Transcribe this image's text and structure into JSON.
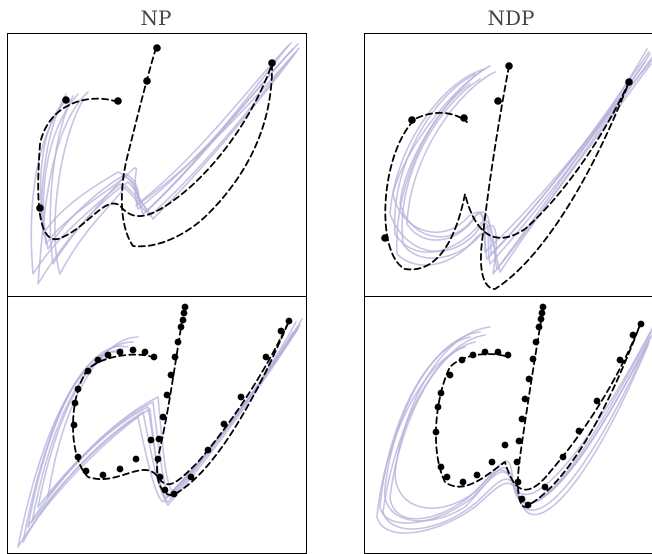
{
  "titles": {
    "left": "NP",
    "right": "NDP"
  },
  "panels": [
    {
      "id": "np-top",
      "model": "NP",
      "row": "few-context"
    },
    {
      "id": "ndp-top",
      "model": "NDP",
      "row": "few-context"
    },
    {
      "id": "np-bottom",
      "model": "NP",
      "row": "many-context"
    },
    {
      "id": "ndp-bottom",
      "model": "NDP",
      "row": "many-context"
    }
  ],
  "colors": {
    "sample_trajectories": "#b3b0da",
    "mean_trajectory": "#000000",
    "context_points": "#000000"
  }
}
